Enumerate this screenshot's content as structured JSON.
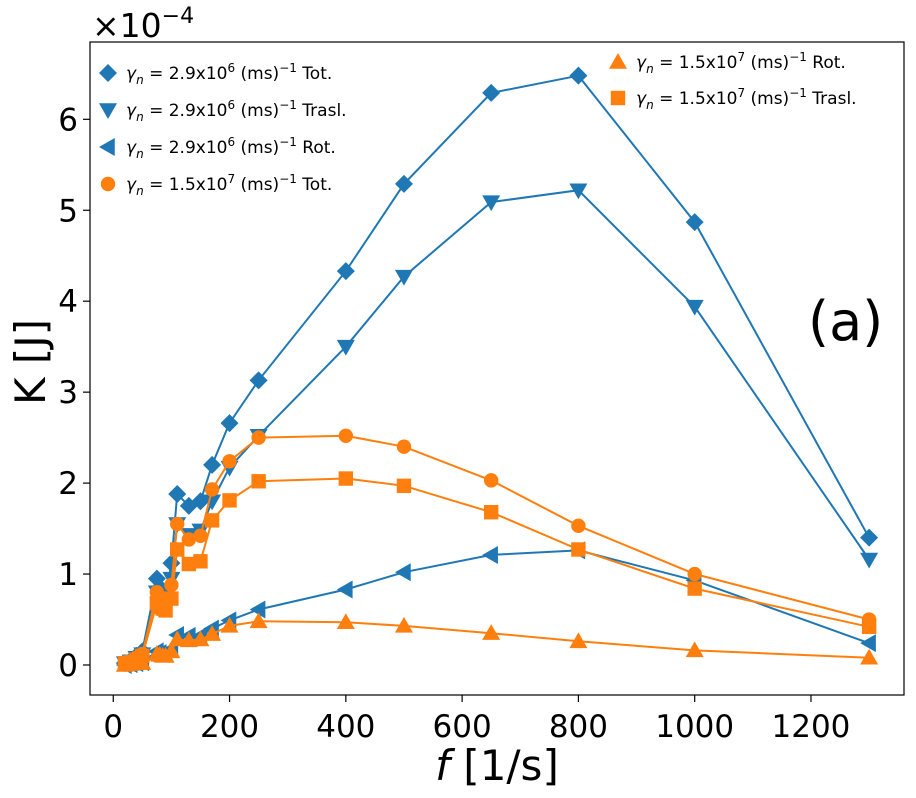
{
  "chart_data": {
    "type": "line",
    "title": "",
    "panel_label": "(a)",
    "xlabel_var": "f",
    "xlabel_unit": " [1/s]",
    "ylabel": "K [J]",
    "y_exponent_label": "×10",
    "y_exponent_power": "−4",
    "xlim": [
      -40,
      1360
    ],
    "ylim": [
      -0.33,
      6.85
    ],
    "xticks": [
      0,
      200,
      400,
      600,
      800,
      1000,
      1200
    ],
    "yticks": [
      0,
      1,
      2,
      3,
      4,
      5,
      6
    ],
    "xtick_labels": [
      "0",
      "200",
      "400",
      "600",
      "800",
      "1000",
      "1200"
    ],
    "ytick_labels": [
      "0",
      "1",
      "2",
      "3",
      "4",
      "5",
      "6"
    ],
    "colors": {
      "blue": "#1f77b4",
      "orange": "#ff7f0e"
    },
    "series": [
      {
        "name": "γn = 2.9x10^6 (ms)^-1 Tot.",
        "label_parts": {
          "gamma": "γ",
          "sub": "n",
          "eq": " = 2.9x10",
          "sup": "6",
          "units": " (ms)",
          "units_sup": "−1",
          "suffix": " Tot."
        },
        "color": "#1f77b4",
        "marker": "diamond",
        "x": [
          20,
          30,
          40,
          50,
          75,
          80,
          85,
          90,
          100,
          110,
          130,
          150,
          170,
          200,
          250,
          400,
          500,
          650,
          800,
          1000,
          1300
        ],
        "y": [
          0.02,
          0.05,
          0.1,
          0.15,
          0.95,
          0.85,
          0.8,
          0.75,
          1.12,
          1.88,
          1.75,
          1.8,
          2.2,
          2.66,
          3.13,
          4.33,
          5.29,
          6.29,
          6.48,
          4.87,
          1.4
        ]
      },
      {
        "name": "γn = 2.9x10^6 (ms)^-1 Trasl.",
        "label_parts": {
          "gamma": "γ",
          "sub": "n",
          "eq": " = 2.9x10",
          "sup": "6",
          "units": " (ms)",
          "units_sup": "−1",
          "suffix": " Trasl."
        },
        "color": "#1f77b4",
        "marker": "triangle-down",
        "x": [
          20,
          30,
          40,
          50,
          75,
          80,
          85,
          90,
          100,
          110,
          130,
          150,
          170,
          200,
          250,
          400,
          500,
          650,
          800,
          1000,
          1300
        ],
        "y": [
          0.02,
          0.04,
          0.08,
          0.12,
          0.8,
          0.72,
          0.7,
          0.68,
          0.95,
          1.55,
          1.43,
          1.48,
          1.8,
          2.17,
          2.52,
          3.5,
          4.27,
          5.09,
          5.22,
          3.94,
          1.16
        ]
      },
      {
        "name": "γn = 2.9x10^6 (ms)^-1 Rot.",
        "label_parts": {
          "gamma": "γ",
          "sub": "n",
          "eq": " = 2.9x10",
          "sup": "6",
          "units": " (ms)",
          "units_sup": "−1",
          "suffix": " Rot."
        },
        "color": "#1f77b4",
        "marker": "triangle-left",
        "x": [
          20,
          30,
          40,
          50,
          75,
          80,
          85,
          90,
          100,
          110,
          130,
          150,
          170,
          200,
          250,
          400,
          500,
          650,
          800,
          1000,
          1300
        ],
        "y": [
          0.0,
          0.01,
          0.02,
          0.03,
          0.15,
          0.13,
          0.12,
          0.12,
          0.17,
          0.33,
          0.32,
          0.32,
          0.4,
          0.49,
          0.61,
          0.83,
          1.02,
          1.21,
          1.26,
          0.93,
          0.24
        ]
      },
      {
        "name": "γn = 1.5x10^7 (ms)^-1 Tot.",
        "label_parts": {
          "gamma": "γ",
          "sub": "n",
          "eq": " = 1.5x10",
          "sup": "7",
          "units": " (ms)",
          "units_sup": "−1",
          "suffix": " Tot."
        },
        "color": "#ff7f0e",
        "marker": "circle",
        "x": [
          20,
          30,
          40,
          50,
          75,
          80,
          85,
          90,
          100,
          110,
          130,
          150,
          170,
          200,
          250,
          400,
          500,
          650,
          800,
          1000,
          1300
        ],
        "y": [
          0.02,
          0.04,
          0.08,
          0.12,
          0.8,
          0.75,
          0.72,
          0.7,
          0.88,
          1.55,
          1.38,
          1.42,
          1.93,
          2.24,
          2.5,
          2.52,
          2.4,
          2.03,
          1.53,
          1.0,
          0.5
        ]
      },
      {
        "name": "γn = 1.5x10^7 (ms)^-1 Rot.",
        "label_parts": {
          "gamma": "γ",
          "sub": "n",
          "eq": " = 1.5x10",
          "sup": "7",
          "units": " (ms)",
          "units_sup": "−1",
          "suffix": " Rot."
        },
        "color": "#ff7f0e",
        "marker": "triangle-up",
        "x": [
          20,
          30,
          40,
          50,
          75,
          80,
          85,
          90,
          100,
          110,
          130,
          150,
          170,
          200,
          250,
          400,
          500,
          650,
          800,
          1000,
          1300
        ],
        "y": [
          0.0,
          0.01,
          0.02,
          0.02,
          0.12,
          0.11,
          0.1,
          0.1,
          0.15,
          0.28,
          0.27,
          0.28,
          0.34,
          0.43,
          0.48,
          0.47,
          0.43,
          0.35,
          0.26,
          0.16,
          0.08
        ]
      },
      {
        "name": "γn = 1.5x10^7 (ms)^-1 Trasl.",
        "label_parts": {
          "gamma": "γ",
          "sub": "n",
          "eq": " = 1.5x10",
          "sup": "7",
          "units": " (ms)",
          "units_sup": "−1",
          "suffix": " Trasl."
        },
        "color": "#ff7f0e",
        "marker": "square",
        "x": [
          20,
          30,
          40,
          50,
          75,
          80,
          85,
          90,
          100,
          110,
          130,
          150,
          170,
          200,
          250,
          400,
          500,
          650,
          800,
          1000,
          1300
        ],
        "y": [
          0.02,
          0.03,
          0.06,
          0.1,
          0.68,
          0.64,
          0.62,
          0.6,
          0.73,
          1.27,
          1.11,
          1.14,
          1.59,
          1.81,
          2.02,
          2.05,
          1.97,
          1.68,
          1.27,
          0.84,
          0.42
        ]
      }
    ],
    "legend": {
      "left_column": [
        0,
        1,
        2,
        3
      ],
      "right_column": [
        4,
        5
      ]
    }
  }
}
